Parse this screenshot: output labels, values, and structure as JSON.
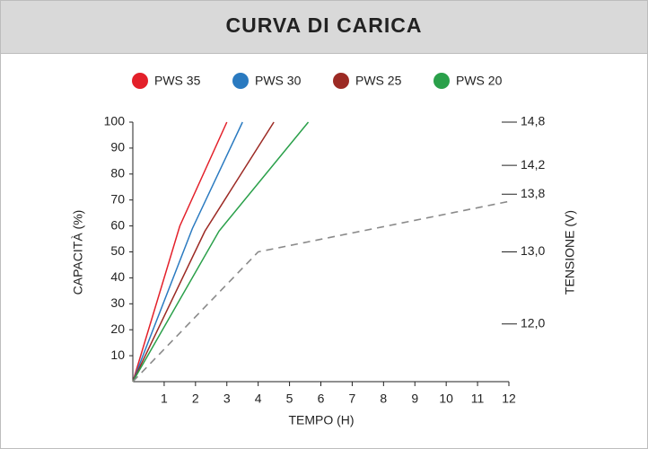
{
  "chart_data": {
    "type": "line",
    "title": "CURVA DI CARICA",
    "x_label": "TEMPO (H)",
    "y_label": "CAPACITÀ (%)",
    "y2_label": "TENSIONE (V)",
    "xlim": [
      0,
      12
    ],
    "xticks": [
      1,
      2,
      3,
      4,
      5,
      6,
      7,
      8,
      9,
      10,
      11,
      12
    ],
    "ylim": [
      0,
      100
    ],
    "yticks": [
      10,
      20,
      30,
      40,
      50,
      60,
      70,
      80,
      90,
      100
    ],
    "y2lim": [
      11.2,
      14.8
    ],
    "y2ticks": [
      {
        "value": 12.0,
        "label": "12,0"
      },
      {
        "value": 13.0,
        "label": "13,0"
      },
      {
        "value": 13.8,
        "label": "13,8"
      },
      {
        "value": 14.2,
        "label": "14,2"
      },
      {
        "value": 14.8,
        "label": "14,8"
      }
    ],
    "series": [
      {
        "name": "PWS 35",
        "color": "#e3202a",
        "x": [
          0,
          1.5,
          3.0
        ],
        "values": [
          0,
          60,
          100
        ]
      },
      {
        "name": "PWS 30",
        "color": "#2a7ac0",
        "x": [
          0,
          1.9,
          3.5
        ],
        "values": [
          0,
          59,
          100
        ]
      },
      {
        "name": "PWS 25",
        "color": "#9c2a24",
        "x": [
          0,
          2.3,
          4.5
        ],
        "values": [
          0,
          58,
          100
        ]
      },
      {
        "name": "PWS 20",
        "color": "#2aa04a",
        "x": [
          0,
          2.75,
          5.6
        ],
        "values": [
          0,
          58,
          100
        ]
      },
      {
        "color": "#8a8a8a",
        "dashed": true,
        "axis": "y2",
        "x": [
          0,
          4,
          12
        ],
        "values": [
          11.2,
          13.0,
          13.7
        ]
      }
    ]
  }
}
